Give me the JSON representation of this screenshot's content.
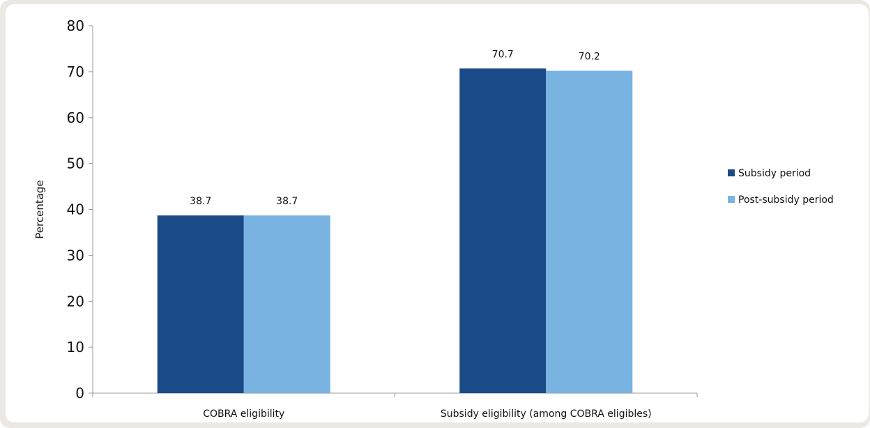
{
  "chart_data": {
    "type": "bar",
    "ylabel": "Percentage",
    "ylim": [
      0,
      80
    ],
    "yticks": [
      0,
      10,
      20,
      30,
      40,
      50,
      60,
      70,
      80
    ],
    "categories": [
      "COBRA eligibility",
      "Subsidy eligibility (among COBRA eligibles)"
    ],
    "series": [
      {
        "name": "Subsidy period",
        "values": [
          38.7,
          70.7
        ],
        "color": "#1b4b87",
        "labels": [
          "38.7",
          "70.7"
        ]
      },
      {
        "name": "Post-subsidy period",
        "values": [
          38.7,
          70.2
        ],
        "color": "#79b3e1",
        "labels": [
          "38.7",
          "70.2"
        ]
      }
    ],
    "legend_position": "right",
    "grid": false
  }
}
